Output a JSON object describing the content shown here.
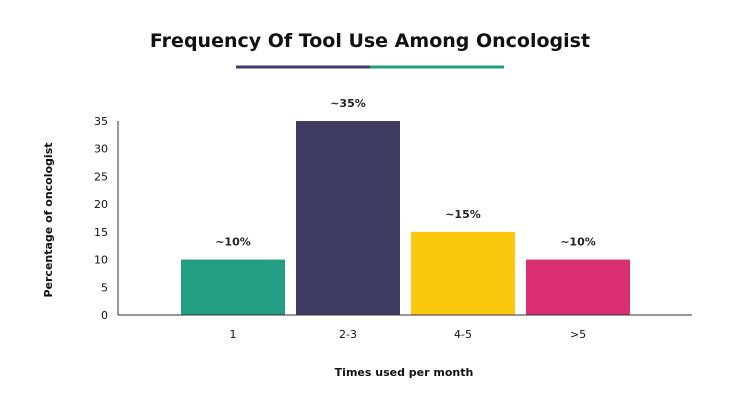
{
  "chart_data": {
    "type": "bar",
    "title": "Frequency Of Tool Use Among Oncologist",
    "xlabel": "Times used per month",
    "ylabel": "Percentage of oncologist",
    "categories": [
      "1",
      "2-3",
      "4-5",
      ">5"
    ],
    "values": [
      10,
      35,
      15,
      10
    ],
    "data_labels": [
      "~10%",
      "~35%",
      "~15%",
      "~10%"
    ],
    "bar_colors": [
      "#239e82",
      "#3e3c63",
      "#fbc80f",
      "#d92f70"
    ],
    "ylim": [
      0,
      35
    ],
    "yticks": [
      0,
      5,
      10,
      15,
      20,
      25,
      30,
      35
    ],
    "title_underline_colors": [
      "#3e3c63",
      "#239e82"
    ],
    "grid": false,
    "legend": "none"
  }
}
